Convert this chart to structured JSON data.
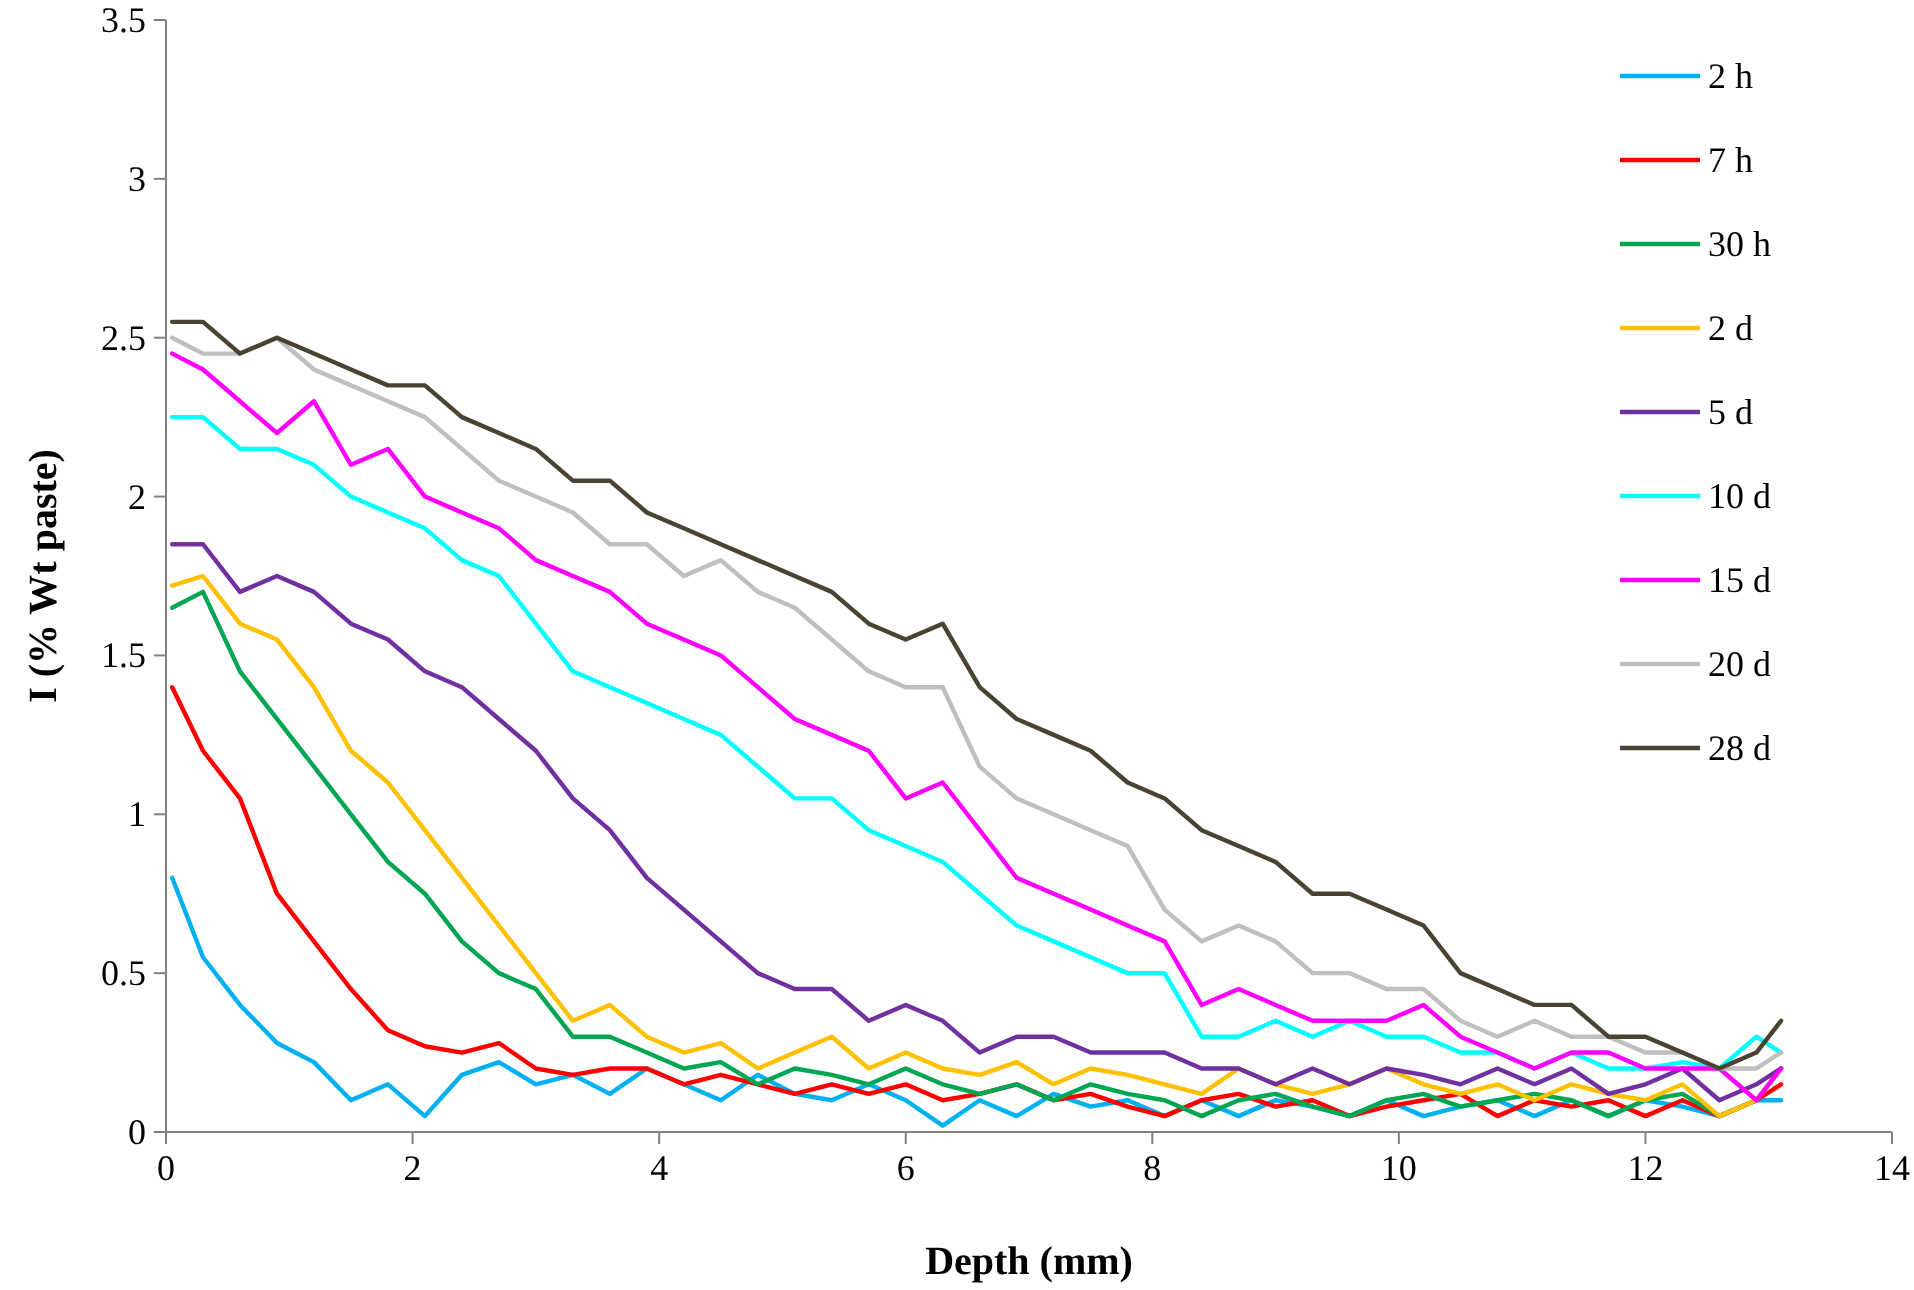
{
  "chart_data": {
    "type": "line",
    "xlabel": "Depth (mm)",
    "ylabel": "I (% Wt paste)",
    "xlim": [
      0,
      14
    ],
    "xticks": [
      0,
      2,
      4,
      6,
      8,
      10,
      12,
      14
    ],
    "ylim": [
      0,
      3.5
    ],
    "yticks": [
      0,
      0.5,
      1,
      1.5,
      2,
      2.5,
      3,
      3.5
    ],
    "grid": false,
    "legend": "top right",
    "marker": "none",
    "line_style": "solid",
    "x": [
      0.05,
      0.3,
      0.6,
      0.9,
      1.2,
      1.5,
      1.8,
      2.1,
      2.4,
      2.7,
      3.0,
      3.3,
      3.6,
      3.9,
      4.2,
      4.5,
      4.8,
      5.1,
      5.4,
      5.7,
      6.0,
      6.3,
      6.6,
      6.9,
      7.2,
      7.5,
      7.8,
      8.1,
      8.4,
      8.7,
      9.0,
      9.3,
      9.6,
      9.9,
      10.2,
      10.5,
      10.8,
      11.1,
      11.4,
      11.7,
      12.0,
      12.3,
      12.6,
      12.9,
      13.1
    ],
    "series": [
      {
        "name": "2 h",
        "color": "#00b0f0",
        "values": [
          0.8,
          0.55,
          0.4,
          0.28,
          0.22,
          0.1,
          0.15,
          0.05,
          0.18,
          0.22,
          0.15,
          0.18,
          0.12,
          0.2,
          0.15,
          0.1,
          0.18,
          0.12,
          0.1,
          0.15,
          0.1,
          0.02,
          0.1,
          0.05,
          0.12,
          0.08,
          0.1,
          0.05,
          0.1,
          0.05,
          0.1,
          0.08,
          0.05,
          0.1,
          0.05,
          0.08,
          0.1,
          0.05,
          0.1,
          0.05,
          0.1,
          0.08,
          0.05,
          0.1,
          0.1
        ]
      },
      {
        "name": "7 h",
        "color": "#ff0000",
        "values": [
          1.4,
          1.2,
          1.05,
          0.75,
          0.6,
          0.45,
          0.32,
          0.27,
          0.25,
          0.28,
          0.2,
          0.18,
          0.2,
          0.2,
          0.15,
          0.18,
          0.15,
          0.12,
          0.15,
          0.12,
          0.15,
          0.1,
          0.12,
          0.15,
          0.1,
          0.12,
          0.08,
          0.05,
          0.1,
          0.12,
          0.08,
          0.1,
          0.05,
          0.08,
          0.1,
          0.12,
          0.05,
          0.1,
          0.08,
          0.1,
          0.05,
          0.1,
          0.05,
          0.1,
          0.15
        ]
      },
      {
        "name": "30 h",
        "color": "#00a651",
        "values": [
          1.65,
          1.7,
          1.45,
          1.3,
          1.15,
          1.0,
          0.85,
          0.75,
          0.6,
          0.5,
          0.45,
          0.3,
          0.3,
          0.25,
          0.2,
          0.22,
          0.15,
          0.2,
          0.18,
          0.15,
          0.2,
          0.15,
          0.12,
          0.15,
          0.1,
          0.15,
          0.12,
          0.1,
          0.05,
          0.1,
          0.12,
          0.08,
          0.05,
          0.1,
          0.12,
          0.08,
          0.1,
          0.12,
          0.1,
          0.05,
          0.1,
          0.12,
          0.05,
          0.1,
          0.2
        ]
      },
      {
        "name": "2 d",
        "color": "#ffc000",
        "values": [
          1.72,
          1.75,
          1.6,
          1.55,
          1.4,
          1.2,
          1.1,
          0.95,
          0.8,
          0.65,
          0.5,
          0.35,
          0.4,
          0.3,
          0.25,
          0.28,
          0.2,
          0.25,
          0.3,
          0.2,
          0.25,
          0.2,
          0.18,
          0.22,
          0.15,
          0.2,
          0.18,
          0.15,
          0.12,
          0.2,
          0.15,
          0.12,
          0.15,
          0.2,
          0.15,
          0.12,
          0.15,
          0.1,
          0.15,
          0.12,
          0.1,
          0.15,
          0.05,
          0.1,
          0.2
        ]
      },
      {
        "name": "5 d",
        "color": "#7030a0",
        "values": [
          1.85,
          1.85,
          1.7,
          1.75,
          1.7,
          1.6,
          1.55,
          1.45,
          1.4,
          1.3,
          1.2,
          1.05,
          0.95,
          0.8,
          0.7,
          0.6,
          0.5,
          0.45,
          0.45,
          0.35,
          0.4,
          0.35,
          0.25,
          0.3,
          0.3,
          0.25,
          0.25,
          0.25,
          0.2,
          0.2,
          0.15,
          0.2,
          0.15,
          0.2,
          0.18,
          0.15,
          0.2,
          0.15,
          0.2,
          0.12,
          0.15,
          0.2,
          0.1,
          0.15,
          0.2
        ]
      },
      {
        "name": "10 d",
        "color": "#00ffff",
        "values": [
          2.25,
          2.25,
          2.15,
          2.15,
          2.1,
          2.0,
          1.95,
          1.9,
          1.8,
          1.75,
          1.6,
          1.45,
          1.4,
          1.35,
          1.3,
          1.25,
          1.15,
          1.05,
          1.05,
          0.95,
          0.9,
          0.85,
          0.75,
          0.65,
          0.6,
          0.55,
          0.5,
          0.5,
          0.3,
          0.3,
          0.35,
          0.3,
          0.35,
          0.3,
          0.3,
          0.25,
          0.25,
          0.2,
          0.25,
          0.2,
          0.2,
          0.22,
          0.2,
          0.3,
          0.25
        ]
      },
      {
        "name": "15 d",
        "color": "#ff00ff",
        "values": [
          2.45,
          2.4,
          2.3,
          2.2,
          2.3,
          2.1,
          2.15,
          2.0,
          1.95,
          1.9,
          1.8,
          1.75,
          1.7,
          1.6,
          1.55,
          1.5,
          1.4,
          1.3,
          1.25,
          1.2,
          1.05,
          1.1,
          0.95,
          0.8,
          0.75,
          0.7,
          0.65,
          0.6,
          0.4,
          0.45,
          0.4,
          0.35,
          0.35,
          0.35,
          0.4,
          0.3,
          0.25,
          0.2,
          0.25,
          0.25,
          0.2,
          0.2,
          0.2,
          0.1,
          0.2
        ]
      },
      {
        "name": "20 d",
        "color": "#bfbfbf",
        "values": [
          2.5,
          2.45,
          2.45,
          2.5,
          2.4,
          2.35,
          2.3,
          2.25,
          2.15,
          2.05,
          2.0,
          1.95,
          1.85,
          1.85,
          1.75,
          1.8,
          1.7,
          1.65,
          1.55,
          1.45,
          1.4,
          1.4,
          1.15,
          1.05,
          1.0,
          0.95,
          0.9,
          0.7,
          0.6,
          0.65,
          0.6,
          0.5,
          0.5,
          0.45,
          0.45,
          0.35,
          0.3,
          0.35,
          0.3,
          0.3,
          0.25,
          0.25,
          0.2,
          0.2,
          0.25
        ]
      },
      {
        "name": "28 d",
        "color": "#4a4331",
        "values": [
          2.55,
          2.55,
          2.45,
          2.5,
          2.45,
          2.4,
          2.35,
          2.35,
          2.25,
          2.2,
          2.15,
          2.05,
          2.05,
          1.95,
          1.9,
          1.85,
          1.8,
          1.75,
          1.7,
          1.6,
          1.55,
          1.6,
          1.4,
          1.3,
          1.25,
          1.2,
          1.1,
          1.05,
          0.95,
          0.9,
          0.85,
          0.75,
          0.75,
          0.7,
          0.65,
          0.5,
          0.45,
          0.4,
          0.4,
          0.3,
          0.3,
          0.25,
          0.2,
          0.25,
          0.35
        ]
      }
    ]
  }
}
